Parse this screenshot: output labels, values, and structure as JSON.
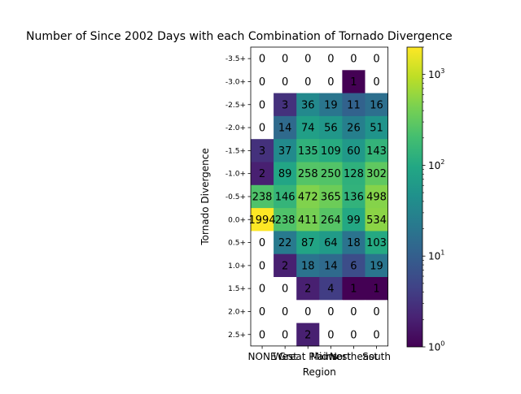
{
  "chart_data": {
    "type": "heatmap",
    "title": "Number of Since 2002 Days with each Combination of Tornado Divergence",
    "xlabel": "Region",
    "ylabel": "Tornado Divergence",
    "x_categories": [
      "NONE",
      "West",
      "Great Plains",
      "Midwest",
      "Northeast",
      "South"
    ],
    "y_categories": [
      "-3.5+",
      "-3.0+",
      "-2.5+",
      "-2.0+",
      "-1.5+",
      "-1.0+",
      "-0.5+",
      "0.0+",
      "0.5+",
      "1.0+",
      "1.5+",
      "2.0+",
      "2.5+"
    ],
    "values": [
      [
        0,
        0,
        0,
        0,
        0,
        0
      ],
      [
        0,
        0,
        0,
        0,
        1,
        0
      ],
      [
        0,
        3,
        36,
        19,
        11,
        16
      ],
      [
        0,
        14,
        74,
        56,
        26,
        51
      ],
      [
        3,
        37,
        135,
        109,
        60,
        143
      ],
      [
        2,
        89,
        258,
        250,
        128,
        302
      ],
      [
        238,
        146,
        472,
        365,
        136,
        498
      ],
      [
        1994,
        238,
        411,
        264,
        99,
        534
      ],
      [
        0,
        22,
        87,
        64,
        18,
        103
      ],
      [
        0,
        2,
        18,
        14,
        6,
        19
      ],
      [
        0,
        0,
        2,
        4,
        1,
        1
      ],
      [
        0,
        0,
        0,
        0,
        0,
        0
      ],
      [
        0,
        0,
        2,
        0,
        0,
        0
      ]
    ],
    "colormap": "viridis",
    "color_scale": "log",
    "zero_color": "#ffffff",
    "colorbar": {
      "range": [
        1,
        2000
      ],
      "ticks": [
        {
          "value": 1,
          "label": "10",
          "exp": "0"
        },
        {
          "value": 10,
          "label": "10",
          "exp": "1"
        },
        {
          "value": 100,
          "label": "10",
          "exp": "2"
        },
        {
          "value": 1000,
          "label": "10",
          "exp": "3"
        }
      ]
    },
    "grid": false
  }
}
